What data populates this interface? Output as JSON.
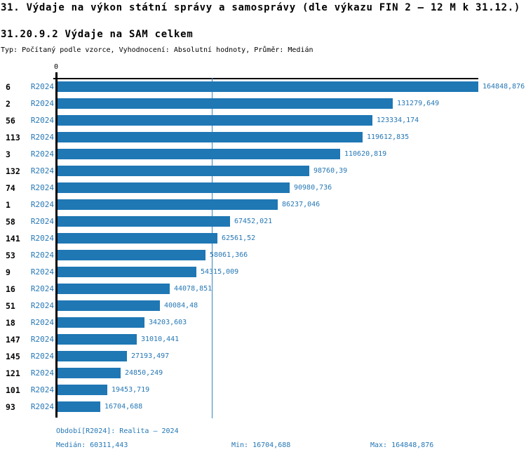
{
  "header": {
    "title": "31. Výdaje na výkon státní správy a samosprávy (dle výkazu FIN 2 – 12 M k 31.12.)",
    "subtitle": "31.20.9.2 Výdaje na SAM celkem",
    "meta": "Typ: Počítaný podle vzorce, Vyhodnocení: Absolutní hodnoty, Průměr: Medián"
  },
  "series_label": "R2024",
  "colors": {
    "bar": "#1f77b4",
    "text_blue": "#2577b5",
    "median_line": "#3585bf",
    "axis": "#000000"
  },
  "chart_data": {
    "type": "bar",
    "orientation": "horizontal",
    "title": "31.20.9.2 Výdaje na SAM celkem",
    "axis_zero_label": "0",
    "xlim": [
      0,
      164848.876
    ],
    "grid": false,
    "legend": false,
    "median_value": 60311.443,
    "categories": [
      "6",
      "2",
      "56",
      "113",
      "3",
      "132",
      "74",
      "1",
      "58",
      "141",
      "53",
      "9",
      "16",
      "51",
      "18",
      "147",
      "145",
      "121",
      "101",
      "93"
    ],
    "series": [
      {
        "name": "R2024",
        "values": [
          164848.876,
          131279.649,
          123334.174,
          119612.835,
          110620.819,
          98760.39,
          90980.736,
          86237.046,
          67452.021,
          62561.52,
          58061.366,
          54315.009,
          44078.851,
          40084.48,
          34203.603,
          31010.441,
          27193.497,
          24850.249,
          19453.719,
          16704.688
        ]
      }
    ],
    "value_labels": [
      "164848,876",
      "131279,649",
      "123334,174",
      "119612,835",
      "110620,819",
      "98760,39",
      "90980,736",
      "86237,046",
      "67452,021",
      "62561,52",
      "58061,366",
      "54315,009",
      "44078,851",
      "40084,48",
      "34203,603",
      "31010,441",
      "27193,497",
      "24850,249",
      "19453,719",
      "16704,688"
    ]
  },
  "footer": {
    "period_label": "Období[R2024]: Realita – 2024",
    "median_label": "Medián: 60311,443",
    "min_label": "Min: 16704,688",
    "max_label": "Max: 164848,876"
  }
}
